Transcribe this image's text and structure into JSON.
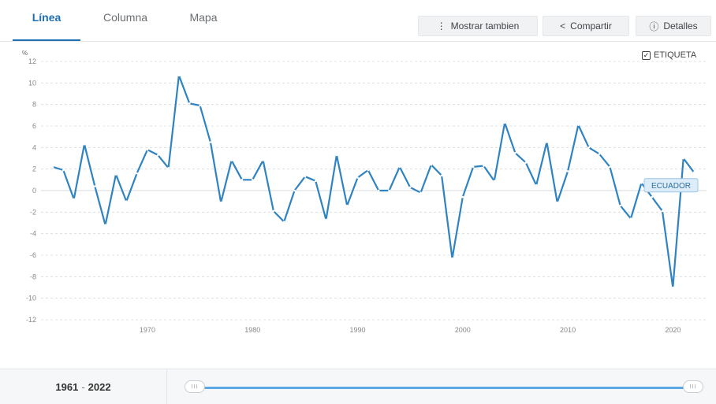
{
  "tabs": {
    "line": "Línea",
    "column": "Columna",
    "map": "Mapa"
  },
  "toolbar": {
    "show_also": "Mostrar tambien",
    "share": "Compartir",
    "details": "Detalles"
  },
  "label_toggle": {
    "text": "ETIQUETA",
    "checked": true
  },
  "chart_data": {
    "type": "line",
    "ylabel": "%",
    "ylim": [
      -12,
      12
    ],
    "yticks": [
      12,
      10,
      8,
      6,
      4,
      2,
      0,
      -2,
      -4,
      -6,
      -8,
      -10,
      -12
    ],
    "xlim": [
      1961,
      2022
    ],
    "xticks": [
      1970,
      1980,
      1990,
      2000,
      2010,
      2020
    ],
    "grid": true,
    "series": [
      {
        "name": "ECUADOR",
        "color": "#2f83c1",
        "x": [
          1961,
          1962,
          1963,
          1964,
          1965,
          1966,
          1967,
          1968,
          1969,
          1970,
          1971,
          1972,
          1973,
          1974,
          1975,
          1976,
          1977,
          1978,
          1979,
          1980,
          1981,
          1982,
          1983,
          1984,
          1985,
          1986,
          1987,
          1988,
          1989,
          1990,
          1991,
          1992,
          1993,
          1994,
          1995,
          1996,
          1997,
          1998,
          1999,
          2000,
          2001,
          2002,
          2003,
          2004,
          2005,
          2006,
          2007,
          2008,
          2009,
          2010,
          2011,
          2012,
          2013,
          2014,
          2015,
          2016,
          2017,
          2018,
          2019,
          2020,
          2021,
          2022
        ],
        "values": [
          2.2,
          1.9,
          -0.8,
          4.3,
          0.4,
          -3.2,
          1.5,
          -1.0,
          1.6,
          3.8,
          3.3,
          2.1,
          10.7,
          8.1,
          7.9,
          4.5,
          -1.1,
          2.8,
          1.0,
          1.0,
          2.8,
          -1.9,
          -2.9,
          0.0,
          1.3,
          0.9,
          -2.7,
          3.3,
          -1.4,
          1.2,
          1.9,
          0.0,
          0.0,
          2.2,
          0.3,
          -0.2,
          2.4,
          1.4,
          -6.3,
          -0.6,
          2.2,
          2.3,
          0.9,
          6.3,
          3.5,
          2.6,
          0.5,
          4.5,
          -1.1,
          1.8,
          6.1,
          4.0,
          3.4,
          2.2,
          -1.4,
          -2.6,
          0.7,
          -0.6,
          -1.9,
          -9.0,
          3.0,
          1.7
        ]
      }
    ]
  },
  "footer": {
    "range_start": "1961",
    "range_end": "2022",
    "range_sep": "-",
    "handle_grip": "III"
  }
}
